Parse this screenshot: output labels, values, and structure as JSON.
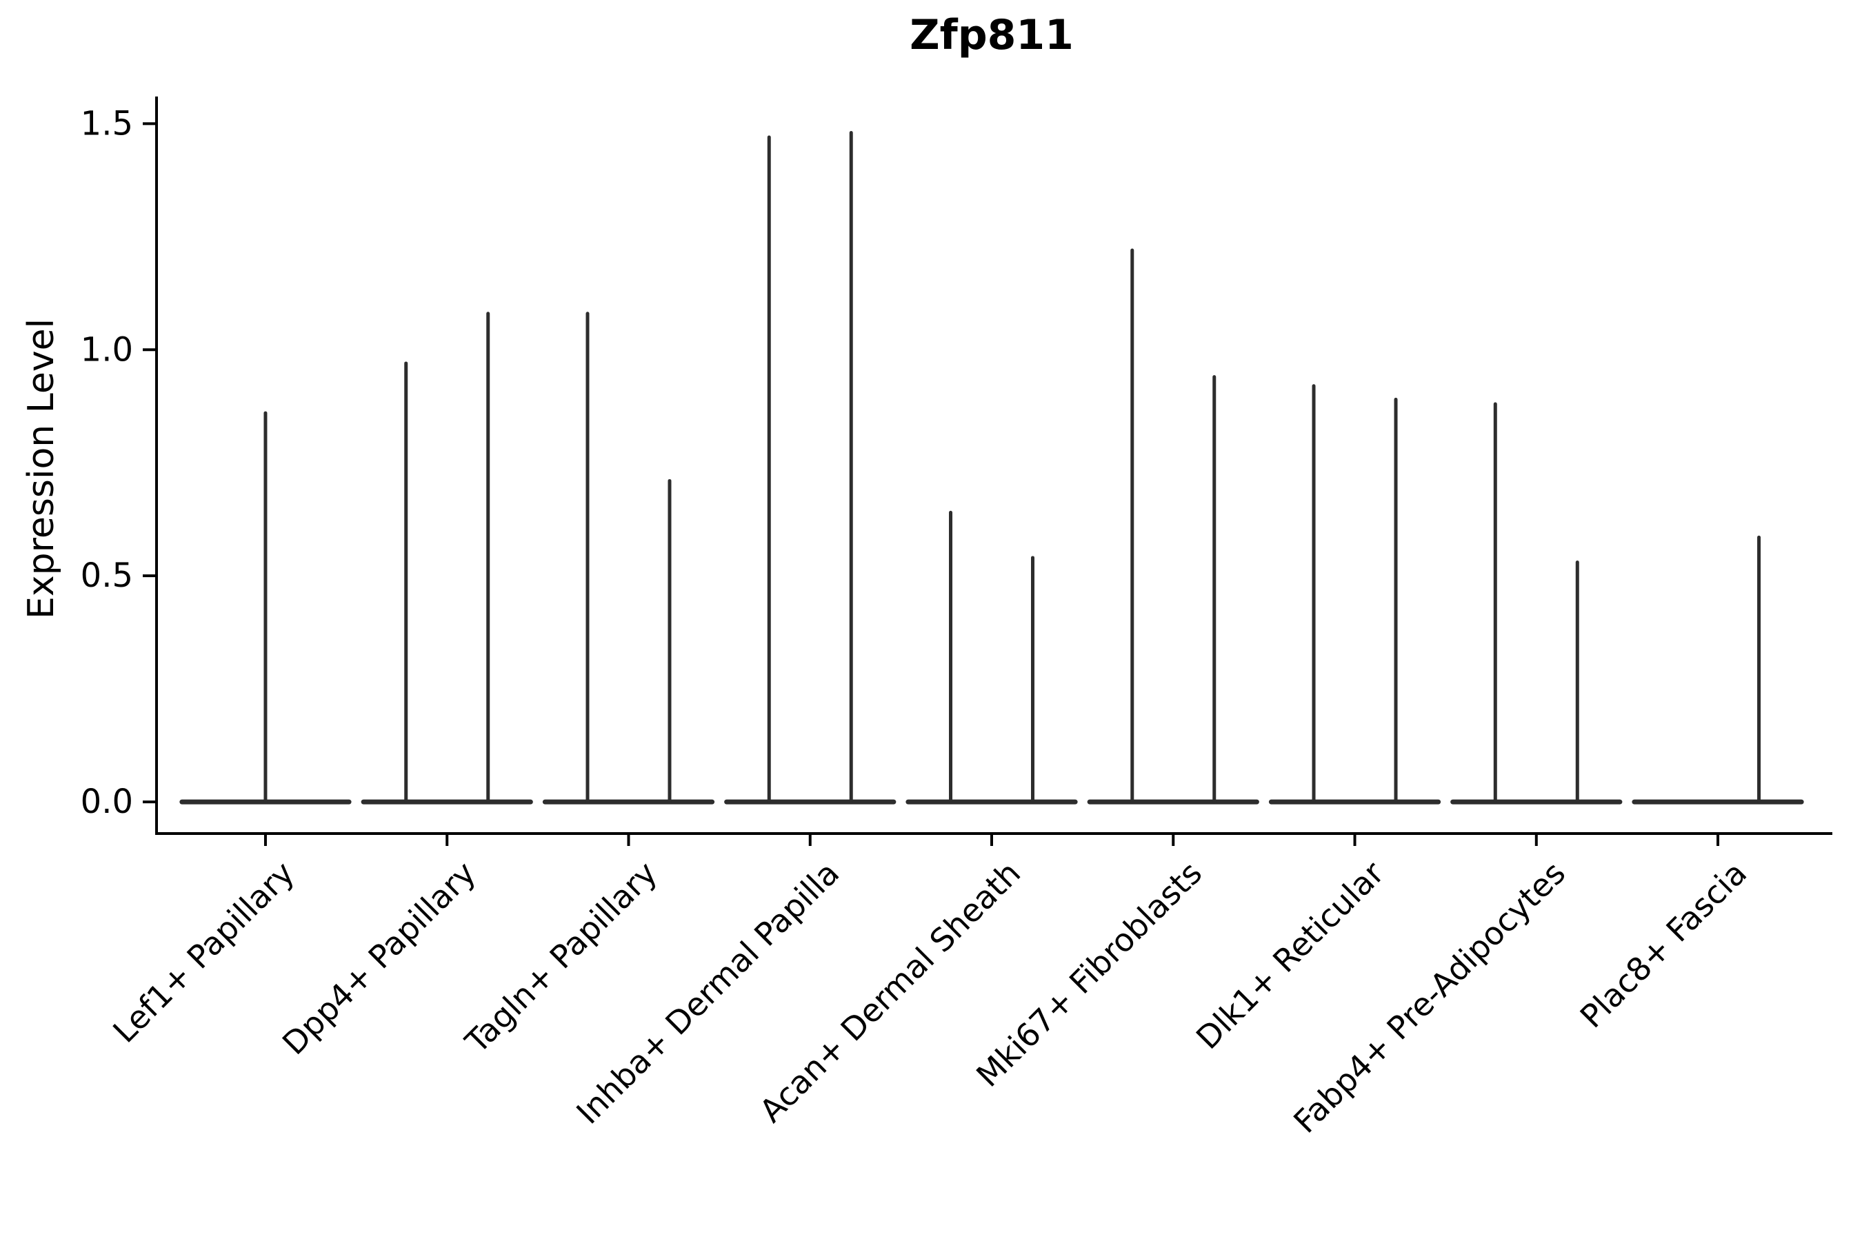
{
  "chart_data": {
    "type": "violin",
    "title": "Zfp811",
    "xlabel": "",
    "ylabel": "Expression Level",
    "categories": [
      "Lef1+ Papillary",
      "Dpp4+ Papillary",
      "Tagln+ Papillary",
      "Inhba+ Dermal Papilla",
      "Acan+ Dermal Sheath",
      "Mki67+ Fibroblasts",
      "Dlk1+ Reticular",
      "Fabp4+ Pre-Adipocytes",
      "Plac8+ Fascia"
    ],
    "ytick_values": [
      0.0,
      0.5,
      1.0,
      1.5
    ],
    "ytick_labels": [
      "0.0",
      "0.5",
      "1.0",
      "1.5"
    ],
    "ylim": [
      -0.07,
      1.56
    ],
    "grid": false,
    "legend": null,
    "baseline_value": 0.0,
    "baseline_halfwidth": 0.46,
    "violins": [
      {
        "category": "Lef1+ Papillary",
        "spikes": [
          {
            "offset": 0.0,
            "max": 0.86
          }
        ]
      },
      {
        "category": "Dpp4+ Papillary",
        "spikes": [
          {
            "offset": -0.226,
            "max": 0.97
          },
          {
            "offset": 0.226,
            "max": 1.08
          }
        ]
      },
      {
        "category": "Tagln+ Papillary",
        "spikes": [
          {
            "offset": -0.226,
            "max": 1.08
          },
          {
            "offset": 0.226,
            "max": 0.71
          }
        ]
      },
      {
        "category": "Inhba+ Dermal Papilla",
        "spikes": [
          {
            "offset": -0.226,
            "max": 1.47
          },
          {
            "offset": 0.226,
            "max": 1.48
          }
        ]
      },
      {
        "category": "Acan+ Dermal Sheath",
        "spikes": [
          {
            "offset": -0.226,
            "max": 0.64
          },
          {
            "offset": 0.226,
            "max": 0.54
          }
        ]
      },
      {
        "category": "Mki67+ Fibroblasts",
        "spikes": [
          {
            "offset": -0.226,
            "max": 1.22
          },
          {
            "offset": 0.226,
            "max": 0.94
          }
        ]
      },
      {
        "category": "Dlk1+ Reticular",
        "spikes": [
          {
            "offset": -0.226,
            "max": 0.92
          },
          {
            "offset": 0.226,
            "max": 0.89
          }
        ]
      },
      {
        "category": "Fabp4+ Pre-Adipocytes",
        "spikes": [
          {
            "offset": -0.226,
            "max": 0.88
          },
          {
            "offset": 0.226,
            "max": 0.53
          }
        ]
      },
      {
        "category": "Plac8+ Fascia",
        "spikes": [
          {
            "offset": 0.226,
            "max": 0.585
          }
        ]
      }
    ],
    "style": {
      "line_color": "#2d2d2d",
      "axis_color": "#000000",
      "text_color": "#000000",
      "background": "#ffffff"
    }
  }
}
